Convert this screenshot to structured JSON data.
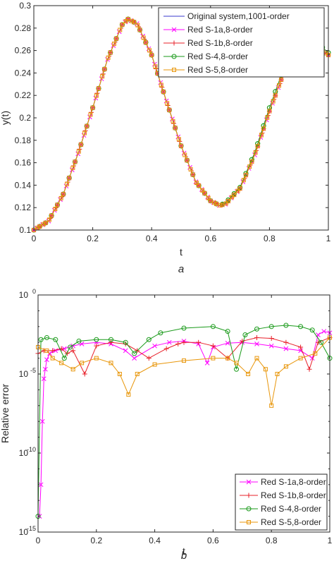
{
  "chart_data": [
    {
      "type": "line",
      "caption": "a",
      "xlabel": "t",
      "ylabel": "y(t)",
      "xlim": [
        0,
        1
      ],
      "ylim": [
        0.1,
        0.3
      ],
      "xticks": [
        0,
        0.2,
        0.4,
        0.6,
        0.8,
        1
      ],
      "xtick_labels": [
        "0",
        "0.2",
        "0.4",
        "0.6",
        "0.8",
        "1"
      ],
      "yticks": [
        0.1,
        0.12,
        0.14,
        0.16,
        0.18,
        0.2,
        0.22,
        0.24,
        0.26,
        0.28,
        0.3
      ],
      "ytick_labels": [
        "0.1",
        "0.12",
        "0.14",
        "0.16",
        "0.18",
        "0.2",
        "0.22",
        "0.24",
        "0.26",
        "0.28",
        "0.3"
      ],
      "grid": false,
      "legend_position": "top-right",
      "x": [
        0,
        0.05,
        0.1,
        0.15,
        0.2,
        0.25,
        0.3,
        0.32,
        0.35,
        0.4,
        0.45,
        0.5,
        0.55,
        0.6,
        0.63,
        0.65,
        0.7,
        0.75,
        0.8,
        0.85,
        0.9,
        0.93,
        0.95,
        1
      ],
      "series": [
        {
          "name": "Original system,1001-order",
          "color": "#3a3acd",
          "marker": "none",
          "values": [
            0.1,
            0.108,
            0.132,
            0.168,
            0.209,
            0.252,
            0.283,
            0.288,
            0.284,
            0.256,
            0.215,
            0.175,
            0.143,
            0.126,
            0.122,
            0.123,
            0.137,
            0.167,
            0.206,
            0.241,
            0.262,
            0.268,
            0.266,
            0.256
          ]
        },
        {
          "name": "Red S-1a,8-order",
          "color": "#ff00ff",
          "marker": "x",
          "values": [
            0.1,
            0.108,
            0.132,
            0.168,
            0.209,
            0.252,
            0.283,
            0.288,
            0.284,
            0.256,
            0.215,
            0.175,
            0.143,
            0.126,
            0.122,
            0.123,
            0.137,
            0.167,
            0.206,
            0.241,
            0.262,
            0.268,
            0.266,
            0.256
          ]
        },
        {
          "name": "Red S-1b,8-order",
          "color": "#e8202a",
          "marker": "plus",
          "values": [
            0.1,
            0.108,
            0.132,
            0.168,
            0.209,
            0.252,
            0.283,
            0.288,
            0.284,
            0.256,
            0.215,
            0.175,
            0.143,
            0.126,
            0.122,
            0.123,
            0.137,
            0.167,
            0.206,
            0.241,
            0.262,
            0.268,
            0.266,
            0.256
          ]
        },
        {
          "name": "Red S-4,8-order",
          "color": "#1a9a1a",
          "marker": "circle",
          "values": [
            0.1,
            0.108,
            0.132,
            0.168,
            0.209,
            0.252,
            0.283,
            0.288,
            0.284,
            0.256,
            0.215,
            0.175,
            0.143,
            0.126,
            0.122,
            0.124,
            0.138,
            0.169,
            0.209,
            0.245,
            0.266,
            0.271,
            0.27,
            0.258
          ]
        },
        {
          "name": "Red S-5,8-order",
          "color": "#e8960a",
          "marker": "square",
          "values": [
            0.1,
            0.108,
            0.132,
            0.168,
            0.209,
            0.252,
            0.283,
            0.288,
            0.284,
            0.256,
            0.215,
            0.175,
            0.143,
            0.126,
            0.122,
            0.123,
            0.137,
            0.167,
            0.206,
            0.241,
            0.262,
            0.268,
            0.266,
            0.256
          ]
        }
      ]
    },
    {
      "type": "line",
      "caption": "b",
      "xlabel": "t",
      "ylabel": "Relative error",
      "yscale": "log",
      "xlim": [
        0,
        1
      ],
      "ylim": [
        1e-15,
        1
      ],
      "xticks": [
        0,
        0.2,
        0.4,
        0.6,
        0.8,
        1
      ],
      "xtick_labels": [
        "0",
        "0.2",
        "0.4",
        "0.6",
        "0.8",
        "1"
      ],
      "ytick_exponents": [
        0,
        -5,
        -10,
        -15
      ],
      "ytick_base": "10",
      "ytick_labels": [
        "0",
        "-5",
        "-10",
        "-15"
      ],
      "grid": false,
      "legend_position": "bottom-right",
      "series": [
        {
          "name": "Red S-1a,8-order",
          "color": "#ff00ff",
          "marker": "x",
          "x": [
            0.005,
            0.01,
            0.015,
            0.02,
            0.025,
            0.03,
            0.04,
            0.06,
            0.09,
            0.12,
            0.15,
            0.2,
            0.25,
            0.3,
            0.33,
            0.4,
            0.45,
            0.5,
            0.55,
            0.58,
            0.6,
            0.65,
            0.7,
            0.75,
            0.8,
            0.85,
            0.9,
            0.94,
            0.96,
            0.98,
            1.0
          ],
          "values": [
            1e-14,
            1e-12,
            1e-08,
            5e-06,
            2e-05,
            8e-05,
            0.0002,
            0.0003,
            0.0004,
            0.0006,
            0.0008,
            0.001,
            0.0008,
            0.0003,
            0.0001,
            0.0006,
            0.001,
            0.0012,
            0.0008,
            5e-05,
            0.0005,
            0.0009,
            0.001,
            0.0008,
            0.0006,
            0.0004,
            0.0003,
            0.0001,
            0.003,
            0.005,
            0.004
          ]
        },
        {
          "name": "Red S-1b,8-order",
          "color": "#e8202a",
          "marker": "plus",
          "x": [
            0.0,
            0.02,
            0.05,
            0.08,
            0.1,
            0.12,
            0.16,
            0.2,
            0.25,
            0.3,
            0.34,
            0.38,
            0.44,
            0.48,
            0.5,
            0.55,
            0.6,
            0.65,
            0.7,
            0.75,
            0.8,
            0.85,
            0.9,
            0.93,
            0.96,
            1.0
          ],
          "values": [
            0.0002,
            0.0003,
            0.0003,
            0.0004,
            0.0002,
            0.0003,
            1e-05,
            0.0006,
            0.001,
            0.0008,
            0.0003,
            0.0001,
            0.0004,
            0.0008,
            0.001,
            0.001,
            0.0006,
            0.0001,
            0.0012,
            0.002,
            0.0018,
            0.001,
            0.0005,
            2e-05,
            0.001,
            0.002
          ]
        },
        {
          "name": "Red S-4,8-order",
          "color": "#1a9a1a",
          "marker": "circle",
          "x": [
            0.0,
            0.01,
            0.03,
            0.06,
            0.09,
            0.11,
            0.14,
            0.2,
            0.25,
            0.3,
            0.33,
            0.38,
            0.42,
            0.5,
            0.6,
            0.65,
            0.68,
            0.71,
            0.75,
            0.8,
            0.85,
            0.9,
            0.94,
            0.97,
            1.0
          ],
          "values": [
            1e-14,
            0.0015,
            0.002,
            0.0015,
            0.0001,
            0.0005,
            0.0012,
            0.0015,
            0.0015,
            0.001,
            0.0002,
            0.0015,
            0.004,
            0.008,
            0.01,
            0.005,
            2e-05,
            0.003,
            0.007,
            0.01,
            0.012,
            0.01,
            0.006,
            0.001,
            0.0001
          ]
        },
        {
          "name": "Red S-5,8-order",
          "color": "#e8960a",
          "marker": "square",
          "x": [
            0.0,
            0.03,
            0.05,
            0.08,
            0.12,
            0.15,
            0.2,
            0.25,
            0.28,
            0.31,
            0.34,
            0.4,
            0.5,
            0.6,
            0.65,
            0.68,
            0.72,
            0.75,
            0.78,
            0.8,
            0.82,
            0.85,
            0.9,
            0.95,
            1.0
          ],
          "values": [
            0.0005,
            0.0003,
            0.0001,
            5e-05,
            2e-05,
            5e-05,
            0.0001,
            5e-05,
            1e-05,
            5e-07,
            1e-05,
            4e-05,
            7e-05,
            0.0001,
            0.0001,
            5e-05,
            1e-05,
            0.0001,
            2e-05,
            1e-07,
            1e-05,
            3e-05,
            0.0001,
            0.0002,
            0.002
          ]
        }
      ]
    }
  ]
}
